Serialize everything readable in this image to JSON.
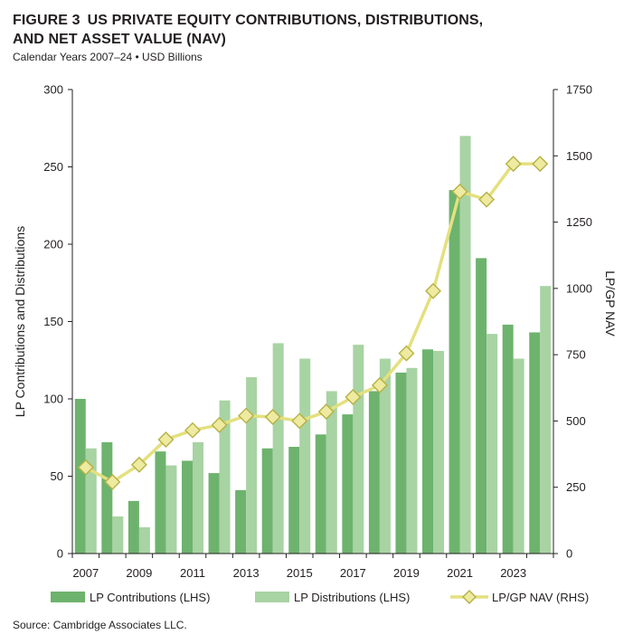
{
  "figure": {
    "label": "FIGURE 3",
    "title_line1": "US PRIVATE EQUITY CONTRIBUTIONS, DISTRIBUTIONS,",
    "title_line2": "AND NET ASSET VALUE (NAV)",
    "subtitle": "Calendar Years 2007–24 • USD Billions",
    "source": "Source: Cambridge Associates LLC."
  },
  "colors": {
    "contributions": "#6db36d",
    "distributions": "#a8d3a3",
    "nav_line": "#e4e07f",
    "nav_marker_fill": "#eeeaa0",
    "nav_marker_stroke": "#b5b146",
    "axis": "#231f20"
  },
  "chart_data": {
    "type": "bar",
    "categories": [
      "2007",
      "2008",
      "2009",
      "2010",
      "2011",
      "2012",
      "2013",
      "2014",
      "2015",
      "2016",
      "2017",
      "2018",
      "2019",
      "2020",
      "2021",
      "2022",
      "2023",
      "2024"
    ],
    "x_tick_labels": [
      "2007",
      "",
      "2009",
      "",
      "2011",
      "",
      "2013",
      "",
      "2015",
      "",
      "2017",
      "",
      "2019",
      "",
      "2021",
      "",
      "2023",
      ""
    ],
    "series": [
      {
        "name": "LP Contributions (LHS)",
        "type": "bar",
        "axis": "left",
        "values": [
          100,
          72,
          34,
          66,
          60,
          52,
          41,
          68,
          69,
          77,
          90,
          105,
          117,
          132,
          235,
          191,
          148,
          143
        ]
      },
      {
        "name": "LP Distributions (LHS)",
        "type": "bar",
        "axis": "left",
        "values": [
          68,
          24,
          17,
          57,
          72,
          99,
          114,
          136,
          126,
          105,
          135,
          126,
          120,
          131,
          270,
          142,
          126,
          173
        ]
      },
      {
        "name": "LP/GP NAV (RHS)",
        "type": "line",
        "axis": "right",
        "values": [
          325,
          270,
          335,
          430,
          465,
          485,
          520,
          515,
          500,
          535,
          590,
          635,
          755,
          990,
          1365,
          1335,
          1470,
          1470
        ]
      }
    ],
    "ylabel": "LP Contributions and Distributions",
    "y2label": "LP/GP NAV",
    "ylim": [
      0,
      300
    ],
    "y2lim": [
      0,
      1750
    ],
    "yticks": [
      0,
      50,
      100,
      150,
      200,
      250,
      300
    ],
    "y2ticks": [
      0,
      250,
      500,
      750,
      1000,
      1250,
      1500,
      1750
    ],
    "grid": false,
    "legend_position": "bottom"
  }
}
